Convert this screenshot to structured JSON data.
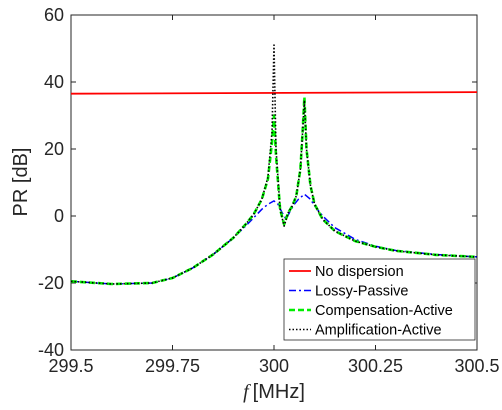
{
  "chart_data": {
    "type": "line",
    "xlabel_symbol": "f",
    "xlabel_unit": "[MHz]",
    "ylabel": "PR [dB]",
    "xlim": [
      299.5,
      300.5
    ],
    "ylim": [
      -40,
      60
    ],
    "xticks": [
      299.5,
      299.75,
      300,
      300.25,
      300.5
    ],
    "xtick_labels": [
      "299.5",
      "299.75",
      "300",
      "300.25",
      "300.5"
    ],
    "yticks": [
      -40,
      -20,
      0,
      20,
      40,
      60
    ],
    "ytick_labels": [
      "-40",
      "-20",
      "0",
      "20",
      "40",
      "60"
    ],
    "grid": false,
    "legend_position": "bottom-right",
    "series": [
      {
        "name": "No dispersion",
        "color": "#ff0000",
        "style": "solid",
        "x": [
          299.5,
          300.5
        ],
        "y": [
          36.5,
          37.0
        ]
      },
      {
        "name": "Lossy-Passive",
        "color": "#0000ff",
        "style": "dashdot",
        "x": [
          299.5,
          299.6,
          299.7,
          299.75,
          299.8,
          299.85,
          299.9,
          299.93,
          299.95,
          299.97,
          299.985,
          300.0,
          300.01,
          300.02,
          300.03,
          300.04,
          300.05,
          300.06,
          300.075,
          300.09,
          300.1,
          300.12,
          300.15,
          300.2,
          300.25,
          300.3,
          300.4,
          300.5
        ],
        "y": [
          -19.5,
          -20.3,
          -20.0,
          -18.5,
          -15.5,
          -11.5,
          -6.5,
          -3.0,
          -0.5,
          2.0,
          3.5,
          4.5,
          3.5,
          1.0,
          -1.0,
          1.5,
          3.5,
          5.0,
          6.5,
          5.0,
          3.0,
          0.0,
          -3.5,
          -7.0,
          -9.0,
          -10.3,
          -11.5,
          -12.2
        ]
      },
      {
        "name": "Compensation-Active",
        "color": "#00ee00",
        "style": "dashed",
        "x": [
          299.5,
          299.6,
          299.7,
          299.75,
          299.8,
          299.85,
          299.9,
          299.93,
          299.95,
          299.97,
          299.985,
          299.995,
          300.0,
          300.005,
          300.015,
          300.025,
          300.035,
          300.045,
          300.055,
          300.065,
          300.07,
          300.075,
          300.08,
          300.09,
          300.1,
          300.12,
          300.15,
          300.2,
          300.25,
          300.3,
          300.4,
          300.5
        ],
        "y": [
          -19.5,
          -20.3,
          -20.0,
          -18.5,
          -15.5,
          -11.5,
          -6.5,
          -2.5,
          0.5,
          5.0,
          11.0,
          22.0,
          30.0,
          18.0,
          2.0,
          -2.5,
          1.0,
          3.0,
          6.0,
          14.0,
          24.0,
          35.5,
          20.0,
          9.0,
          3.5,
          -1.0,
          -4.5,
          -7.5,
          -9.2,
          -10.4,
          -11.6,
          -12.2
        ]
      },
      {
        "name": "Amplification-Active",
        "color": "#000000",
        "style": "dotted",
        "x": [
          299.5,
          299.6,
          299.7,
          299.75,
          299.8,
          299.85,
          299.9,
          299.93,
          299.95,
          299.97,
          299.985,
          299.995,
          300.0,
          300.005,
          300.015,
          300.025,
          300.035,
          300.045,
          300.055,
          300.065,
          300.07,
          300.075,
          300.08,
          300.09,
          300.1,
          300.12,
          300.15,
          300.2,
          300.25,
          300.3,
          300.4,
          300.5
        ],
        "y": [
          -19.5,
          -20.3,
          -20.0,
          -18.5,
          -15.5,
          -11.5,
          -6.5,
          -2.5,
          0.5,
          5.0,
          11.5,
          25.0,
          51.0,
          20.0,
          2.0,
          -3.0,
          1.0,
          3.0,
          6.0,
          14.0,
          24.0,
          34.5,
          20.0,
          9.0,
          3.5,
          -1.0,
          -4.5,
          -7.5,
          -9.2,
          -10.4,
          -11.6,
          -12.2
        ]
      }
    ]
  }
}
